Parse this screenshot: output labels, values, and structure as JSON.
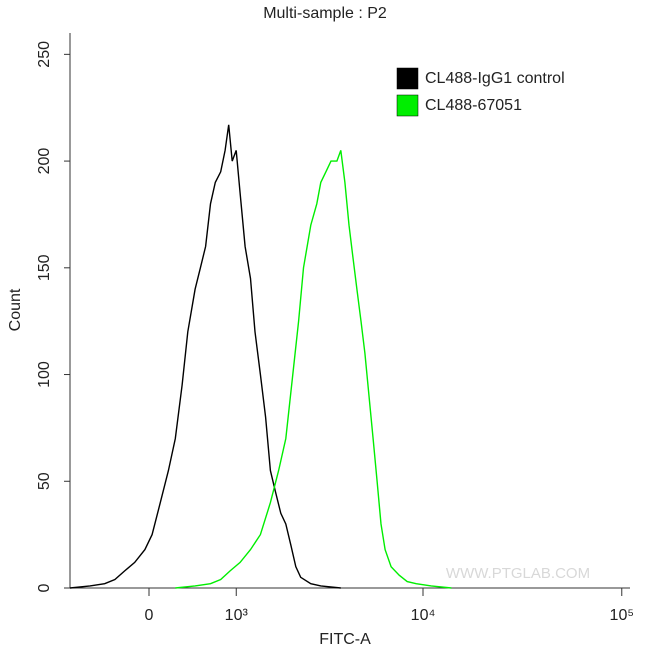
{
  "chart_data": {
    "type": "line",
    "title": "Multi-sample : P2",
    "xlabel": "FITC-A",
    "ylabel": "Count",
    "watermark": "WWW.PTGLAB.COM",
    "xscale": "logicle",
    "xlim": [
      -880,
      110000
    ],
    "ylim": [
      0,
      260
    ],
    "xticks": [
      0,
      {
        "value": 1000,
        "label": "10³"
      },
      {
        "value": 10000,
        "label": "10⁴"
      },
      {
        "value": 100000,
        "label": "10⁵"
      }
    ],
    "yticks": [
      0,
      50,
      100,
      150,
      200,
      250
    ],
    "legend": "upper right",
    "series": [
      {
        "name": "CL488-IgG1 control",
        "color": "#000000",
        "x": [
          -880,
          -620,
          -450,
          -340,
          -240,
          -140,
          -40,
          30,
          110,
          190,
          260,
          330,
          390,
          470,
          530,
          590,
          650,
          710,
          780,
          840,
          890,
          940,
          1000,
          1060,
          1140,
          1230,
          1310,
          1410,
          1510,
          1610,
          1720,
          1840,
          1960,
          2090,
          2220,
          2360,
          2670,
          3010,
          3820
        ],
        "values": [
          0,
          1,
          2,
          4,
          8,
          12,
          18,
          25,
          40,
          55,
          70,
          95,
          120,
          140,
          150,
          160,
          180,
          190,
          195,
          205,
          217,
          200,
          205,
          185,
          160,
          145,
          120,
          100,
          80,
          55,
          45,
          35,
          30,
          20,
          10,
          5,
          2,
          1,
          0
        ]
      },
      {
        "name": "CL488-67051",
        "color": "#00ee00",
        "x": [
          260,
          470,
          650,
          780,
          910,
          1060,
          1230,
          1410,
          1610,
          1790,
          1960,
          2140,
          2300,
          2440,
          2670,
          2870,
          3010,
          3200,
          3400,
          3650,
          3820,
          4010,
          4210,
          4410,
          4620,
          4850,
          5080,
          5330,
          5590,
          5860,
          6130,
          6430,
          6900,
          7580,
          8320,
          9240,
          11000,
          13900
        ],
        "values": [
          0,
          1,
          2,
          4,
          8,
          12,
          18,
          25,
          40,
          55,
          70,
          100,
          125,
          150,
          170,
          180,
          190,
          195,
          200,
          200,
          205,
          190,
          170,
          155,
          140,
          125,
          110,
          90,
          70,
          50,
          30,
          18,
          10,
          6,
          3,
          2,
          1,
          0
        ]
      }
    ]
  }
}
